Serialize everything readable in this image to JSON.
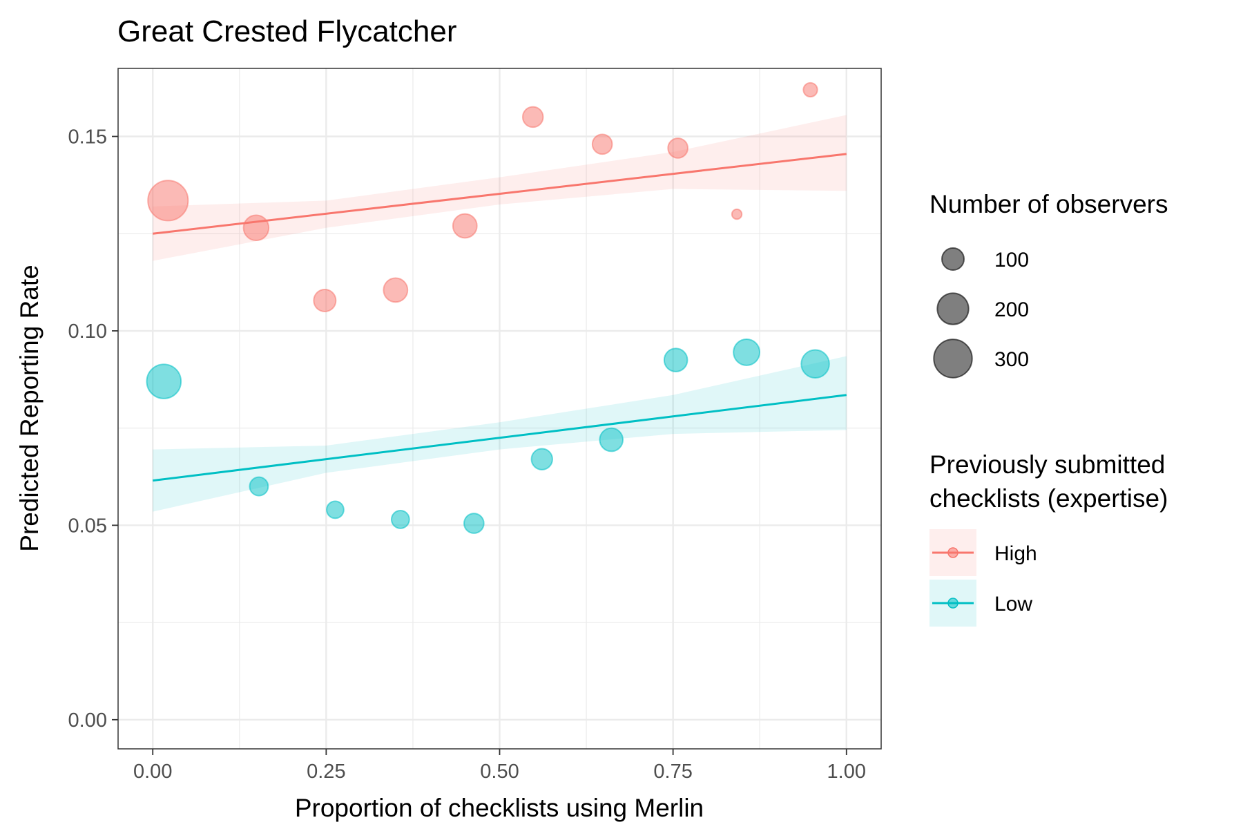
{
  "chart_data": {
    "type": "scatter",
    "title": "Great Crested Flycatcher",
    "xlabel": "Proportion of checklists using Merlin",
    "ylabel": "Predicted Reporting Rate",
    "xlim": [
      -0.05,
      1.05
    ],
    "ylim": [
      -0.0075,
      0.1675
    ],
    "x_ticks": [
      0.0,
      0.25,
      0.5,
      0.75,
      1.0
    ],
    "x_tick_labels": [
      "0.00",
      "0.25",
      "0.50",
      "0.75",
      "1.00"
    ],
    "y_ticks": [
      0.0,
      0.05,
      0.1,
      0.15
    ],
    "y_tick_labels": [
      "0.00",
      "0.05",
      "0.10",
      "0.15"
    ],
    "grid": true,
    "legend_position": "right",
    "size_legend": {
      "title": "Number of observers",
      "values": [
        100,
        200,
        300
      ],
      "labels": [
        "100",
        "200",
        "300"
      ]
    },
    "color_legend": {
      "title_lines": [
        "Previously submitted",
        "checklists (expertise)"
      ]
    },
    "series": [
      {
        "name": "High",
        "color": "#F8766D",
        "points": [
          {
            "x": 0.022,
            "y": 0.1335,
            "n": 330
          },
          {
            "x": 0.149,
            "y": 0.1265,
            "n": 130
          },
          {
            "x": 0.248,
            "y": 0.1078,
            "n": 100
          },
          {
            "x": 0.35,
            "y": 0.1105,
            "n": 118
          },
          {
            "x": 0.45,
            "y": 0.127,
            "n": 118
          },
          {
            "x": 0.548,
            "y": 0.155,
            "n": 85
          },
          {
            "x": 0.648,
            "y": 0.148,
            "n": 80
          },
          {
            "x": 0.757,
            "y": 0.147,
            "n": 80
          },
          {
            "x": 0.842,
            "y": 0.13,
            "n": 20
          },
          {
            "x": 0.948,
            "y": 0.162,
            "n": 40
          }
        ],
        "fit": {
          "intercept": 0.125,
          "slope": 0.0205
        },
        "ci": [
          {
            "x": 0.0,
            "lower": 0.118,
            "upper": 0.132
          },
          {
            "x": 0.25,
            "lower": 0.1265,
            "upper": 0.1335
          },
          {
            "x": 0.5,
            "lower": 0.1325,
            "upper": 0.1395
          },
          {
            "x": 0.75,
            "lower": 0.1365,
            "upper": 0.146
          },
          {
            "x": 1.0,
            "lower": 0.136,
            "upper": 0.1555
          }
        ]
      },
      {
        "name": "Low",
        "color": "#00BFC4",
        "points": [
          {
            "x": 0.016,
            "y": 0.087,
            "n": 240
          },
          {
            "x": 0.153,
            "y": 0.06,
            "n": 70
          },
          {
            "x": 0.263,
            "y": 0.054,
            "n": 60
          },
          {
            "x": 0.357,
            "y": 0.0515,
            "n": 65
          },
          {
            "x": 0.463,
            "y": 0.0505,
            "n": 80
          },
          {
            "x": 0.561,
            "y": 0.067,
            "n": 90
          },
          {
            "x": 0.661,
            "y": 0.072,
            "n": 110
          },
          {
            "x": 0.754,
            "y": 0.0925,
            "n": 110
          },
          {
            "x": 0.856,
            "y": 0.0945,
            "n": 140
          },
          {
            "x": 0.955,
            "y": 0.0915,
            "n": 160
          }
        ],
        "fit": {
          "intercept": 0.0615,
          "slope": 0.022
        },
        "ci": [
          {
            "x": 0.0,
            "lower": 0.0535,
            "upper": 0.0695
          },
          {
            "x": 0.25,
            "lower": 0.0635,
            "upper": 0.0705
          },
          {
            "x": 0.5,
            "lower": 0.0695,
            "upper": 0.0765
          },
          {
            "x": 0.75,
            "lower": 0.0735,
            "upper": 0.0835
          },
          {
            "x": 1.0,
            "lower": 0.0745,
            "upper": 0.0935
          }
        ]
      }
    ]
  }
}
